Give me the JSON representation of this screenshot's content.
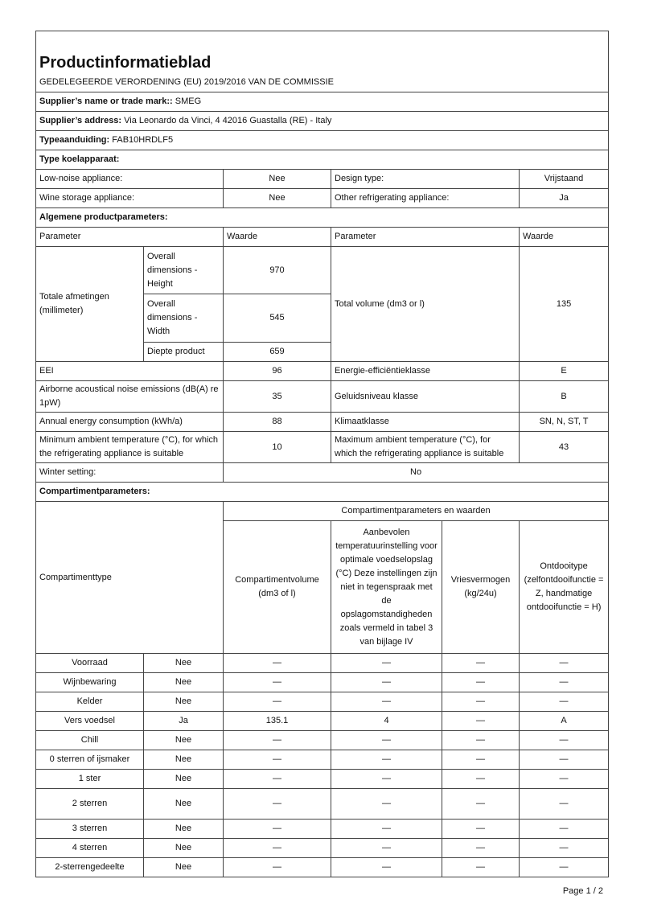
{
  "title": "Productinformatieblad",
  "regulation": "GEDELEGEERDE VERORDENING (EU) 2019/2016 VAN DE COMMISSIE",
  "supplier_name_label": "Supplier’s name or trade mark::",
  "supplier_name": "SMEG",
  "supplier_address_label": "Supplier’s address:",
  "supplier_address": "Via Leonardo da Vinci, 4 42016 Guastalla (RE) - Italy",
  "model_label": "Typeaanduiding:",
  "model": "FAB10HRDLF5",
  "type_section": "Type koelapparaat:",
  "type_rows": [
    {
      "l": "Low-noise appliance:",
      "lv": "Nee",
      "r": "Design type:",
      "rv": "Vrijstaand"
    },
    {
      "l": "Wine storage appliance:",
      "lv": "Nee",
      "r": "Other refrigerating appliance:",
      "rv": "Ja"
    }
  ],
  "general_section": "Algemene productparameters:",
  "general_header": {
    "param": "Parameter",
    "value": "Waarde",
    "param2": "Parameter",
    "value2": "Waarde"
  },
  "dimensions": {
    "label": "Totale afmetingen (millimeter)",
    "height_label": "Overall dimensions - Height",
    "height": "970",
    "width_label": "Overall dimensions - Width",
    "width": "545",
    "depth_label": "Diepte product",
    "depth": "659",
    "volume_label": "Total volume (dm3 or l)",
    "volume": "135"
  },
  "general_rows": [
    {
      "l": "EEI",
      "lv": "96",
      "r": "Energie-efficiëntieklasse",
      "rv": "E"
    },
    {
      "l": "Airborne acoustical noise emissions (dB(A) re 1pW)",
      "lv": "35",
      "r": "Geluidsniveau klasse",
      "rv": "B"
    },
    {
      "l": "Annual energy consumption (kWh/a)",
      "lv": "88",
      "r": "Klimaatklasse",
      "rv": "SN, N, ST, T"
    },
    {
      "l": "Minimum ambient temperature (°C), for which the refrigerating appliance is suitable",
      "lv": "10",
      "r": "Maximum ambient temperature (°C), for which the refrigerating appliance is suitable",
      "rv": "43"
    }
  ],
  "winter": {
    "label": "Winter setting:",
    "value": "No"
  },
  "compartment_section": "Compartimentparameters:",
  "compartment_header": {
    "type": "Compartimenttype",
    "group": "Compartimentparameters en waarden",
    "volume": "Compartimentvolume (dm3 of l)",
    "temp": "Aanbevolen temperatuurinstelling voor optimale voedselopslag (°C) Deze instellingen zijn niet in tegenspraak met de opslagomstandigheden zoals vermeld in tabel 3 van bijlage IV",
    "freeze": "Vriesvermogen (kg/24u)",
    "defrost": "Ontdooitype (zelfontdooifunctie = Z, handmatige ontdooifunctie = H)"
  },
  "compartments": [
    {
      "name": "Voorraad",
      "present": "Nee",
      "volume": "—",
      "temp": "—",
      "freeze": "—",
      "defrost": "—"
    },
    {
      "name": "Wijnbewaring",
      "present": "Nee",
      "volume": "—",
      "temp": "—",
      "freeze": "—",
      "defrost": "—"
    },
    {
      "name": "Kelder",
      "present": "Nee",
      "volume": "—",
      "temp": "—",
      "freeze": "—",
      "defrost": "—"
    },
    {
      "name": "Vers voedsel",
      "present": "Ja",
      "volume": "135.1",
      "temp": "4",
      "freeze": "—",
      "defrost": "A"
    },
    {
      "name": "Chill",
      "present": "Nee",
      "volume": "—",
      "temp": "—",
      "freeze": "—",
      "defrost": "—"
    },
    {
      "name": "0 sterren of ijsmaker",
      "present": "Nee",
      "volume": "—",
      "temp": "—",
      "freeze": "—",
      "defrost": "—"
    },
    {
      "name": "1 ster",
      "present": "Nee",
      "volume": "—",
      "temp": "—",
      "freeze": "—",
      "defrost": "—"
    },
    {
      "name": "2 sterren",
      "present": "Nee",
      "volume": "—",
      "temp": "—",
      "freeze": "—",
      "defrost": "—"
    },
    {
      "name": "3 sterren",
      "present": "Nee",
      "volume": "—",
      "temp": "—",
      "freeze": "—",
      "defrost": "—"
    },
    {
      "name": "4 sterren",
      "present": "Nee",
      "volume": "—",
      "temp": "—",
      "freeze": "—",
      "defrost": "—"
    },
    {
      "name": "2-sterrengedeelte",
      "present": "Nee",
      "volume": "—",
      "temp": "—",
      "freeze": "—",
      "defrost": "—"
    }
  ],
  "page": "Page 1 / 2"
}
